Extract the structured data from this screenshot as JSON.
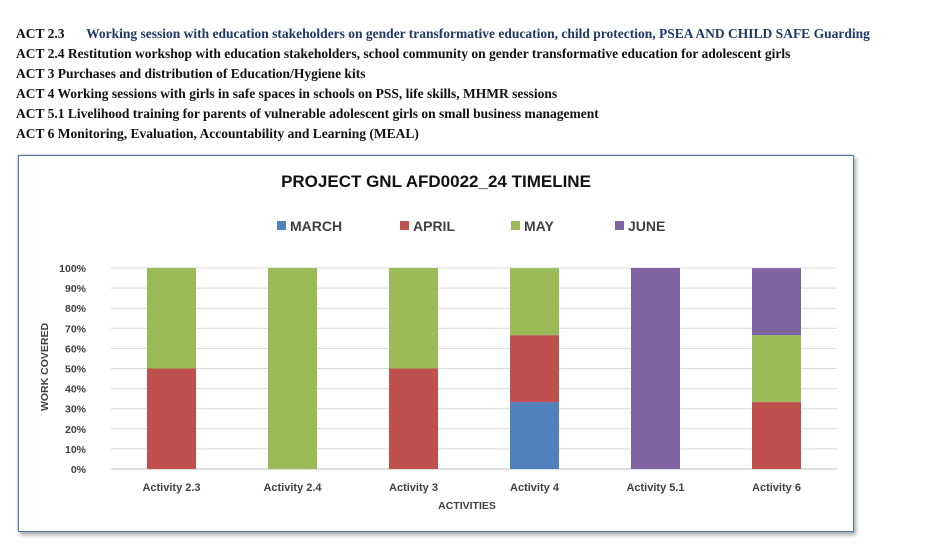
{
  "activities": [
    {
      "code": "ACT 2.3",
      "text": "Working session with education stakeholders on gender transformative education, child protection, PSEA AND CHILD SAFE Guarding"
    },
    {
      "code": "ACT 2.4",
      "text": "Restitution workshop with education stakeholders, school community on gender transformative education for adolescent girls"
    },
    {
      "code": "ACT 3",
      "text": "Purchases and distribution of Education/Hygiene kits"
    },
    {
      "code": "ACT 4",
      "text": "Working sessions with girls in safe spaces in schools on PSS, life skills, MHMR sessions"
    },
    {
      "code": "ACT 5.1",
      "text": "Livelihood training for parents of vulnerable adolescent girls on small business management"
    },
    {
      "code": "ACT 6",
      "text": "Monitoring, Evaluation, Accountability and Learning (MEAL)"
    }
  ],
  "chart_data": {
    "type": "bar",
    "stacked": true,
    "title": "PROJECT GNL AFD0022_24 TIMELINE",
    "xlabel": "ACTIVITIES",
    "ylabel": "WORK COVERED",
    "ylim": [
      0,
      100
    ],
    "y_ticks": [
      "0%",
      "10%",
      "20%",
      "30%",
      "40%",
      "50%",
      "60%",
      "70%",
      "80%",
      "90%",
      "100%"
    ],
    "legend_position": "top",
    "grid": true,
    "categories": [
      "Activity 2.3",
      "Activity 2.4",
      "Activity 3",
      "Activity 4",
      "Activity 5.1",
      "Activity 6"
    ],
    "series": [
      {
        "name": "MARCH",
        "color": "#4f81bd",
        "values": [
          0,
          0,
          0,
          33.3,
          0,
          0
        ]
      },
      {
        "name": "APRIL",
        "color": "#c0504d",
        "values": [
          50,
          0,
          50,
          33.3,
          0,
          33.3
        ]
      },
      {
        "name": "MAY",
        "color": "#9bbb59",
        "values": [
          50,
          100,
          50,
          33.3,
          0,
          33.3
        ]
      },
      {
        "name": "JUNE",
        "color": "#8064a2",
        "values": [
          0,
          0,
          0,
          0,
          100,
          33.3
        ]
      }
    ]
  }
}
